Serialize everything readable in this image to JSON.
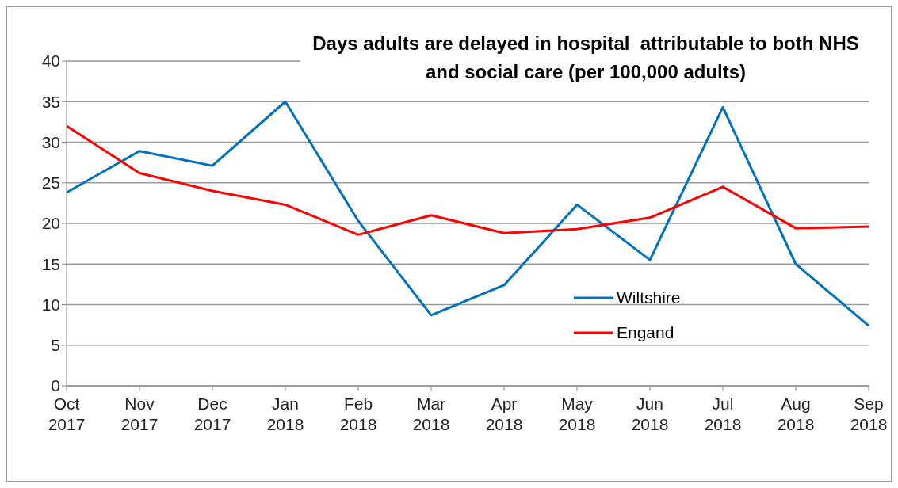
{
  "chart_data": {
    "type": "line",
    "title": "Days adults are delayed in hospital  attributable to both NHS and social care (per 100,000 adults)",
    "categories": [
      "Oct 2017",
      "Nov 2017",
      "Dec 2017",
      "Jan 2018",
      "Feb 2018",
      "Mar 2018",
      "Apr 2018",
      "May 2018",
      "Jun 2018",
      "Jul 2018",
      "Aug 2018",
      "Sep 2018"
    ],
    "series": [
      {
        "name": "Wiltshire",
        "color": "#0070c0",
        "values": [
          23.8,
          28.9,
          27.1,
          35,
          20.3,
          8.7,
          12.4,
          22.3,
          15.5,
          34.3,
          15,
          7.4
        ]
      },
      {
        "name": "Engand",
        "color": "#ff0000",
        "values": [
          32,
          26.2,
          24,
          22.3,
          18.6,
          21,
          18.8,
          19.3,
          20.7,
          24.5,
          19.4,
          19.6
        ]
      }
    ],
    "ylim": [
      0,
      40
    ],
    "yticks": [
      0,
      5,
      10,
      15,
      20,
      25,
      30,
      35,
      40
    ],
    "grid": "y",
    "legend": "right",
    "marker": "none",
    "line_style": "solid"
  }
}
